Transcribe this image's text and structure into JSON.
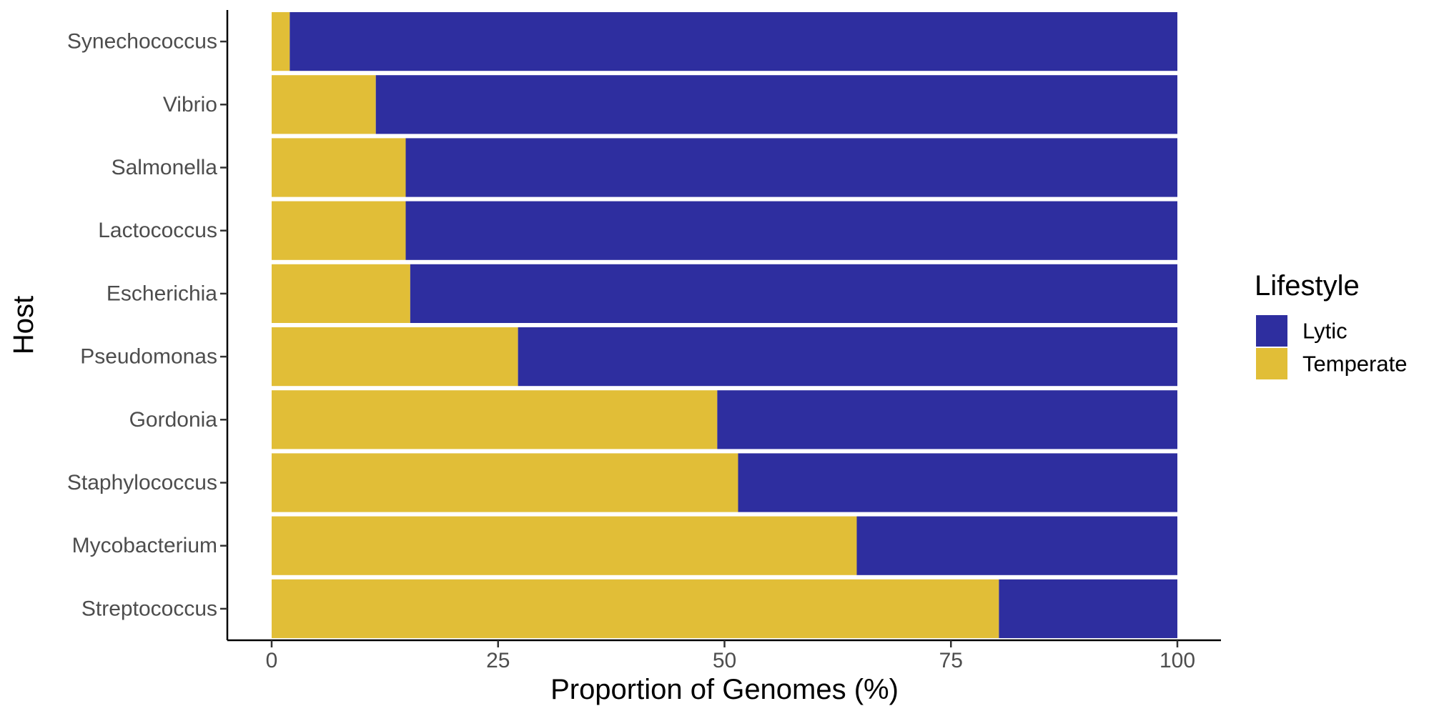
{
  "chart_data": {
    "type": "bar",
    "orientation": "horizontal",
    "stacked": true,
    "categories": [
      "Synechococcus",
      "Vibrio",
      "Salmonella",
      "Lactococcus",
      "Escherichia",
      "Pseudomonas",
      "Gordonia",
      "Staphylococcus",
      "Mycobacterium",
      "Streptococcus"
    ],
    "series": [
      {
        "name": "Temperate",
        "color": "#E1BE37",
        "values": [
          2,
          11.5,
          14.8,
          14.8,
          15.3,
          27.2,
          49.2,
          51.5,
          64.6,
          80.3
        ]
      },
      {
        "name": "Lytic",
        "color": "#2E2E9F",
        "values": [
          98,
          88.5,
          85.2,
          85.2,
          84.7,
          72.8,
          50.8,
          48.5,
          35.4,
          19.7
        ]
      }
    ],
    "xlabel": "Proportion of Genomes (%)",
    "ylabel": "Host",
    "xlim": [
      0,
      100
    ],
    "xticks": [
      "0",
      "25",
      "50",
      "75",
      "100"
    ],
    "grid": false,
    "legend": {
      "title": "Lifestyle",
      "placement": "right",
      "entries": [
        {
          "label": "Lytic",
          "color": "#2E2E9F"
        },
        {
          "label": "Temperate",
          "color": "#E1BE37"
        }
      ]
    }
  }
}
